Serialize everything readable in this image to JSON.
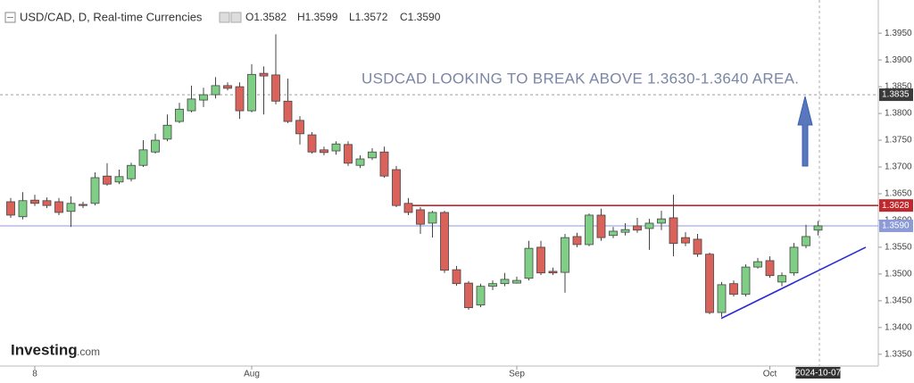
{
  "chart_data": {
    "type": "candlestick",
    "title": "USD/CAD, D, Real-time Currencies",
    "ohlc_labels": [
      "O1.3582",
      "H1.3599",
      "L1.3572",
      "C1.3590"
    ],
    "annotation": "USDCAD LOOKING TO BREAK ABOVE 1.3630-1.3640 AREA.",
    "logo": {
      "main": "Investing",
      "suffix": ".com"
    },
    "categories": [
      null,
      null,
      "8",
      null,
      null,
      null,
      null,
      null,
      null,
      null,
      null,
      null,
      null,
      null,
      null,
      null,
      null,
      null,
      null,
      null,
      "Aug",
      null,
      null,
      null,
      null,
      null,
      null,
      null,
      null,
      null,
      null,
      null,
      null,
      null,
      null,
      null,
      null,
      null,
      null,
      null,
      null,
      null,
      "Sep",
      null,
      null,
      null,
      null,
      null,
      null,
      null,
      null,
      null,
      null,
      null,
      null,
      null,
      null,
      null,
      null,
      null,
      null,
      null,
      null,
      "Oct",
      null,
      null,
      null,
      "2024-10-07"
    ],
    "open": [
      1.3635,
      1.3607,
      1.3638,
      1.3637,
      1.3635,
      1.3617,
      1.363,
      1.3632,
      1.3683,
      1.3672,
      1.3678,
      1.3703,
      1.3728,
      1.3752,
      1.3785,
      1.3805,
      1.3825,
      1.3835,
      1.3852,
      1.385,
      1.3805,
      1.3875,
      1.3872,
      1.3823,
      1.3787,
      1.376,
      1.3732,
      1.373,
      1.3742,
      1.3703,
      1.3717,
      1.3728,
      1.3695,
      1.3632,
      1.362,
      1.3595,
      1.3615,
      1.3508,
      1.3483,
      1.3442,
      1.3477,
      1.3482,
      1.3483,
      1.3492,
      1.355,
      1.3505,
      1.3503,
      1.357,
      1.3555,
      1.361,
      1.3572,
      1.3578,
      1.359,
      1.3585,
      1.3595,
      1.3605,
      1.3568,
      1.3565,
      1.3537,
      1.3428,
      1.3482,
      1.3462,
      1.3513,
      1.3525,
      1.3485,
      1.3502,
      1.3553,
      1.3582
    ],
    "high": [
      1.3642,
      1.3653,
      1.3648,
      1.3643,
      1.3642,
      1.3645,
      1.3635,
      1.369,
      1.3707,
      1.3695,
      1.3708,
      1.375,
      1.3762,
      1.3798,
      1.382,
      1.3852,
      1.3848,
      1.3868,
      1.3858,
      1.3858,
      1.3892,
      1.3888,
      1.3948,
      1.3865,
      1.3795,
      1.3765,
      1.3738,
      1.3748,
      1.3748,
      1.3722,
      1.3735,
      1.3738,
      1.3702,
      1.3642,
      1.3625,
      1.3618,
      1.3618,
      1.3515,
      1.3487,
      1.3482,
      1.3488,
      1.3502,
      1.3495,
      1.3562,
      1.3562,
      1.3512,
      1.3575,
      1.3577,
      1.3613,
      1.3622,
      1.3588,
      1.3595,
      1.3605,
      1.3603,
      1.3618,
      1.3648,
      1.3578,
      1.3575,
      1.354,
      1.3485,
      1.3488,
      1.3518,
      1.353,
      1.3533,
      1.3503,
      1.3558,
      1.3592,
      1.3599
    ],
    "low": [
      1.3605,
      1.3602,
      1.3627,
      1.3623,
      1.361,
      1.3588,
      1.3623,
      1.3628,
      1.3665,
      1.3668,
      1.3673,
      1.37,
      1.3725,
      1.3748,
      1.3782,
      1.3802,
      1.3812,
      1.3828,
      1.3843,
      1.379,
      1.3802,
      1.3798,
      1.3817,
      1.3782,
      1.3742,
      1.3725,
      1.3722,
      1.3723,
      1.3702,
      1.3698,
      1.3713,
      1.368,
      1.3625,
      1.361,
      1.3575,
      1.3568,
      1.3502,
      1.3478,
      1.3433,
      1.3438,
      1.347,
      1.3477,
      1.3482,
      1.3488,
      1.3498,
      1.3498,
      1.3465,
      1.355,
      1.3552,
      1.3562,
      1.3567,
      1.3572,
      1.3577,
      1.3545,
      1.3582,
      1.3533,
      1.3552,
      1.3532,
      1.3425,
      1.342,
      1.3458,
      1.3458,
      1.351,
      1.3493,
      1.3477,
      1.3497,
      1.3548,
      1.3572
    ],
    "close": [
      1.361,
      1.3637,
      1.3632,
      1.3628,
      1.3615,
      1.3632,
      1.3628,
      1.368,
      1.3668,
      1.3682,
      1.3703,
      1.3732,
      1.375,
      1.3778,
      1.3808,
      1.3827,
      1.3835,
      1.3852,
      1.3847,
      1.3805,
      1.3873,
      1.387,
      1.3823,
      1.3785,
      1.3762,
      1.3728,
      1.3727,
      1.3743,
      1.3707,
      1.3715,
      1.3728,
      1.3683,
      1.3628,
      1.3615,
      1.3593,
      1.3615,
      1.3507,
      1.3482,
      1.3437,
      1.3477,
      1.3482,
      1.349,
      1.3488,
      1.3548,
      1.3502,
      1.3502,
      1.3568,
      1.3555,
      1.361,
      1.3568,
      1.358,
      1.3583,
      1.3582,
      1.3595,
      1.3603,
      1.3557,
      1.3558,
      1.3537,
      1.3428,
      1.348,
      1.3462,
      1.3513,
      1.3523,
      1.3497,
      1.3497,
      1.355,
      1.357,
      1.359
    ],
    "up_color": "#7fce86",
    "down_color": "#d9625b",
    "ylim": [
      1.3328,
      1.4012
    ],
    "yticks": [
      {
        "value": 1.335,
        "label": "1.3350"
      },
      {
        "value": 1.34,
        "label": "1.3400"
      },
      {
        "value": 1.345,
        "label": "1.3450"
      },
      {
        "value": 1.35,
        "label": "1.3500"
      },
      {
        "value": 1.355,
        "label": "1.3550"
      },
      {
        "value": 1.36,
        "label": "1.3600"
      },
      {
        "value": 1.365,
        "label": "1.3650"
      },
      {
        "value": 1.37,
        "label": "1.3700"
      },
      {
        "value": 1.375,
        "label": "1.3750"
      },
      {
        "value": 1.38,
        "label": "1.3800"
      },
      {
        "value": 1.385,
        "label": "1.3850"
      },
      {
        "value": 1.39,
        "label": "1.3900"
      },
      {
        "value": 1.395,
        "label": "1.3950"
      }
    ],
    "grid": false,
    "levels": [
      {
        "value": 1.3835,
        "label": "1.3835",
        "color": "#9e9e9e",
        "dashed": true
      },
      {
        "value": 1.3628,
        "label": "1.3628",
        "color": "#c0282d",
        "dashed": false
      },
      {
        "value": 1.359,
        "label": "1.3590",
        "color": "#8c9ad6",
        "dashed": false
      }
    ],
    "trendline": {
      "values": [
        1.3417,
        1.355
      ],
      "color": "#2b2bd6"
    }
  }
}
